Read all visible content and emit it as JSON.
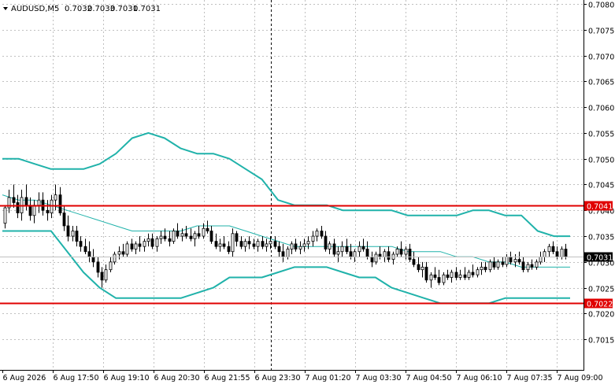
{
  "chart_data": {
    "type": "candlestick",
    "symbol_header": "AUDUSD,M5",
    "ohlc_header": [
      "0.7032",
      "0.7033",
      "0.7031",
      "0.7031"
    ],
    "y_range": [
      0.701,
      0.708
    ],
    "y_ticks": [
      "0.7080",
      "0.7075",
      "0.7070",
      "0.7065",
      "0.7060",
      "0.7055",
      "0.7050",
      "0.7045",
      "0.7040",
      "0.7035",
      "0.7030",
      "0.7025",
      "0.7020",
      "0.7015"
    ],
    "x_ticks": [
      "6 Aug 2026",
      "6 Aug 17:50",
      "6 Aug 19:10",
      "6 Aug 20:30",
      "6 Aug 21:55",
      "6 Aug 23:30",
      "7 Aug 01:20",
      "7 Aug 03:30",
      "7 Aug 04:50",
      "7 Aug 06:10",
      "7 Aug 07:35",
      "7 Aug 09:00"
    ],
    "grid": true,
    "crosshair_at": "6 Aug 23:30",
    "levels": [
      {
        "label": "0.7041",
        "value": 0.7041,
        "color": "#e00000"
      },
      {
        "label": "0.7022",
        "value": 0.7022,
        "color": "#e00000"
      }
    ],
    "last_price_label": "0.7031",
    "last_price": 0.7031,
    "bollinger_color": "#20b2aa",
    "bollinger_upper": [
      0.705,
      0.705,
      0.7049,
      0.7048,
      0.7048,
      0.7048,
      0.7049,
      0.7051,
      0.7054,
      0.7055,
      0.7054,
      0.7052,
      0.7051,
      0.7051,
      0.705,
      0.7048,
      0.7046,
      0.7042,
      0.7041,
      0.7041,
      0.7041,
      0.704,
      0.704,
      0.704,
      0.704,
      0.7039,
      0.7039,
      0.7039,
      0.7039,
      0.704,
      0.704,
      0.7039,
      0.7039,
      0.7036,
      0.7035,
      0.7035
    ],
    "bollinger_middle": [
      0.7043,
      0.7042,
      0.7042,
      0.7041,
      0.704,
      0.7039,
      0.7038,
      0.7037,
      0.7036,
      0.7036,
      0.7036,
      0.7036,
      0.7037,
      0.7037,
      0.7037,
      0.7036,
      0.7035,
      0.7034,
      0.7033,
      0.7033,
      0.7033,
      0.7033,
      0.7033,
      0.7033,
      0.7033,
      0.7032,
      0.7032,
      0.7032,
      0.7031,
      0.7031,
      0.703,
      0.703,
      0.7029,
      0.7029,
      0.7029,
      0.7029
    ],
    "bollinger_lower": [
      0.7036,
      0.7036,
      0.7036,
      0.7036,
      0.7032,
      0.7028,
      0.7025,
      0.7023,
      0.7023,
      0.7023,
      0.7023,
      0.7023,
      0.7024,
      0.7025,
      0.7027,
      0.7027,
      0.7027,
      0.7028,
      0.7029,
      0.7029,
      0.7029,
      0.7028,
      0.7027,
      0.7027,
      0.7025,
      0.7024,
      0.7023,
      0.7022,
      0.7022,
      0.7022,
      0.7022,
      0.7023,
      0.7023,
      0.7023,
      0.7023,
      0.7023
    ],
    "candles": [
      [
        0.70375,
        0.7041,
        0.70365,
        0.70405
      ],
      [
        0.70405,
        0.7044,
        0.70395,
        0.70425
      ],
      [
        0.70425,
        0.7045,
        0.70405,
        0.70415
      ],
      [
        0.70415,
        0.7043,
        0.70385,
        0.70395
      ],
      [
        0.70395,
        0.7044,
        0.7038,
        0.70425
      ],
      [
        0.70425,
        0.7045,
        0.704,
        0.7041
      ],
      [
        0.7041,
        0.70425,
        0.7038,
        0.7039
      ],
      [
        0.7039,
        0.7042,
        0.70375,
        0.7041
      ],
      [
        0.7041,
        0.70435,
        0.70395,
        0.7042
      ],
      [
        0.7042,
        0.70435,
        0.7039,
        0.704
      ],
      [
        0.704,
        0.7042,
        0.7038,
        0.70395
      ],
      [
        0.70395,
        0.7043,
        0.70385,
        0.7042
      ],
      [
        0.7042,
        0.7045,
        0.704,
        0.7043
      ],
      [
        0.7043,
        0.70445,
        0.7039,
        0.70395
      ],
      [
        0.70395,
        0.7041,
        0.7036,
        0.7037
      ],
      [
        0.7037,
        0.7039,
        0.7034,
        0.7035
      ],
      [
        0.7035,
        0.7037,
        0.7034,
        0.7036
      ],
      [
        0.7036,
        0.7037,
        0.7033,
        0.7034
      ],
      [
        0.7034,
        0.7035,
        0.7032,
        0.7033
      ],
      [
        0.7033,
        0.70345,
        0.70315,
        0.7032
      ],
      [
        0.7032,
        0.7034,
        0.703,
        0.7031
      ],
      [
        0.7031,
        0.70325,
        0.7029,
        0.703
      ],
      [
        0.703,
        0.7031,
        0.7027,
        0.7028
      ],
      [
        0.7028,
        0.7029,
        0.7025,
        0.70265
      ],
      [
        0.70265,
        0.70295,
        0.7026,
        0.70285
      ],
      [
        0.70285,
        0.7031,
        0.7028,
        0.703
      ],
      [
        0.703,
        0.7032,
        0.70295,
        0.70315
      ],
      [
        0.70315,
        0.7033,
        0.70305,
        0.7032
      ],
      [
        0.7032,
        0.70335,
        0.7031,
        0.70315
      ],
      [
        0.70315,
        0.7034,
        0.7031,
        0.70335
      ],
      [
        0.70335,
        0.70345,
        0.7032,
        0.70325
      ],
      [
        0.70325,
        0.7034,
        0.70315,
        0.70335
      ],
      [
        0.70335,
        0.7035,
        0.7032,
        0.7033
      ],
      [
        0.7033,
        0.70345,
        0.7032,
        0.7034
      ],
      [
        0.7034,
        0.70355,
        0.7033,
        0.70345
      ],
      [
        0.70345,
        0.70355,
        0.70325,
        0.7033
      ],
      [
        0.7033,
        0.7035,
        0.7032,
        0.70345
      ],
      [
        0.70345,
        0.7036,
        0.70335,
        0.7035
      ],
      [
        0.7035,
        0.70365,
        0.7034,
        0.70345
      ],
      [
        0.70345,
        0.7036,
        0.7033,
        0.7034
      ],
      [
        0.7034,
        0.70365,
        0.70335,
        0.7036
      ],
      [
        0.7036,
        0.70375,
        0.70345,
        0.7035
      ],
      [
        0.7035,
        0.70365,
        0.7034,
        0.70355
      ],
      [
        0.70355,
        0.7037,
        0.70345,
        0.7035
      ],
      [
        0.7035,
        0.70365,
        0.7034,
        0.70345
      ],
      [
        0.70345,
        0.7036,
        0.7033,
        0.70355
      ],
      [
        0.70355,
        0.7037,
        0.70345,
        0.7035
      ],
      [
        0.7035,
        0.70375,
        0.70345,
        0.70365
      ],
      [
        0.70365,
        0.7038,
        0.70355,
        0.7036
      ],
      [
        0.7036,
        0.7037,
        0.70335,
        0.7034
      ],
      [
        0.7034,
        0.70355,
        0.70325,
        0.7033
      ],
      [
        0.7033,
        0.70345,
        0.7032,
        0.70335
      ],
      [
        0.70335,
        0.7035,
        0.70325,
        0.7033
      ],
      [
        0.7033,
        0.7034,
        0.70315,
        0.7032
      ],
      [
        0.7032,
        0.70365,
        0.7031,
        0.70355
      ],
      [
        0.70355,
        0.7036,
        0.7033,
        0.7034
      ],
      [
        0.7034,
        0.7035,
        0.70325,
        0.7033
      ],
      [
        0.7033,
        0.70345,
        0.7032,
        0.7034
      ],
      [
        0.7034,
        0.7035,
        0.70325,
        0.70335
      ],
      [
        0.70335,
        0.70345,
        0.70325,
        0.7033
      ],
      [
        0.7033,
        0.70345,
        0.7032,
        0.7034
      ],
      [
        0.7034,
        0.7035,
        0.70325,
        0.7033
      ],
      [
        0.7033,
        0.70345,
        0.7032,
        0.70335
      ],
      [
        0.70335,
        0.7035,
        0.70325,
        0.7034
      ],
      [
        0.7034,
        0.7035,
        0.70325,
        0.7033
      ],
      [
        0.7033,
        0.7034,
        0.7031,
        0.7032
      ],
      [
        0.7032,
        0.70335,
        0.703,
        0.7031
      ],
      [
        0.7031,
        0.7033,
        0.70305,
        0.70325
      ],
      [
        0.70325,
        0.7034,
        0.70315,
        0.70335
      ],
      [
        0.70335,
        0.70345,
        0.7032,
        0.70325
      ],
      [
        0.70325,
        0.7034,
        0.70315,
        0.7033
      ],
      [
        0.7033,
        0.70345,
        0.7032,
        0.70335
      ],
      [
        0.70335,
        0.7035,
        0.70325,
        0.7034
      ],
      [
        0.7034,
        0.7036,
        0.7033,
        0.7035
      ],
      [
        0.7035,
        0.70365,
        0.7034,
        0.7036
      ],
      [
        0.7036,
        0.7037,
        0.70345,
        0.7035
      ],
      [
        0.7035,
        0.7036,
        0.7032,
        0.70325
      ],
      [
        0.70325,
        0.7034,
        0.70315,
        0.70335
      ],
      [
        0.70335,
        0.70345,
        0.7031,
        0.70315
      ],
      [
        0.70315,
        0.7033,
        0.703,
        0.7032
      ],
      [
        0.7032,
        0.7034,
        0.7031,
        0.7033
      ],
      [
        0.7033,
        0.70345,
        0.70315,
        0.7032
      ],
      [
        0.7032,
        0.70335,
        0.70305,
        0.7031
      ],
      [
        0.7031,
        0.70325,
        0.703,
        0.7032
      ],
      [
        0.7032,
        0.7034,
        0.7031,
        0.7033
      ],
      [
        0.7033,
        0.70345,
        0.7032,
        0.70325
      ],
      [
        0.70325,
        0.7034,
        0.70305,
        0.7031
      ],
      [
        0.7031,
        0.7032,
        0.7029,
        0.703
      ],
      [
        0.703,
        0.7032,
        0.70295,
        0.70315
      ],
      [
        0.70315,
        0.7033,
        0.70305,
        0.7031
      ],
      [
        0.7031,
        0.70325,
        0.703,
        0.7032
      ],
      [
        0.7032,
        0.7033,
        0.703,
        0.70305
      ],
      [
        0.70305,
        0.7032,
        0.70295,
        0.70315
      ],
      [
        0.70315,
        0.7033,
        0.7031,
        0.70325
      ],
      [
        0.70325,
        0.7034,
        0.7031,
        0.70315
      ],
      [
        0.70315,
        0.7033,
        0.70305,
        0.70325
      ],
      [
        0.70325,
        0.70335,
        0.703,
        0.70305
      ],
      [
        0.70305,
        0.7032,
        0.7029,
        0.70295
      ],
      [
        0.70295,
        0.7031,
        0.7028,
        0.70285
      ],
      [
        0.70285,
        0.703,
        0.7027,
        0.7029
      ],
      [
        0.7029,
        0.703,
        0.7026,
        0.70265
      ],
      [
        0.70265,
        0.7028,
        0.7025,
        0.70275
      ],
      [
        0.70275,
        0.7029,
        0.70265,
        0.7027
      ],
      [
        0.7027,
        0.70285,
        0.70255,
        0.7026
      ],
      [
        0.7026,
        0.7028,
        0.70255,
        0.70275
      ],
      [
        0.70275,
        0.70285,
        0.70265,
        0.7027
      ],
      [
        0.7027,
        0.70285,
        0.7026,
        0.7028
      ],
      [
        0.7028,
        0.7029,
        0.70265,
        0.7027
      ],
      [
        0.7027,
        0.70285,
        0.70265,
        0.70275
      ],
      [
        0.70275,
        0.7029,
        0.70265,
        0.7027
      ],
      [
        0.7027,
        0.70285,
        0.70265,
        0.7028
      ],
      [
        0.7028,
        0.70295,
        0.7027,
        0.70275
      ],
      [
        0.70275,
        0.7029,
        0.7027,
        0.70285
      ],
      [
        0.70285,
        0.703,
        0.70275,
        0.7029
      ],
      [
        0.7029,
        0.703,
        0.7028,
        0.70285
      ],
      [
        0.70285,
        0.70305,
        0.7028,
        0.703
      ],
      [
        0.703,
        0.7031,
        0.70285,
        0.7029
      ],
      [
        0.7029,
        0.70305,
        0.70285,
        0.703
      ],
      [
        0.703,
        0.7031,
        0.7029,
        0.70295
      ],
      [
        0.70295,
        0.70315,
        0.7029,
        0.7031
      ],
      [
        0.7031,
        0.7032,
        0.70295,
        0.703
      ],
      [
        0.703,
        0.70315,
        0.7029,
        0.70305
      ],
      [
        0.70305,
        0.7032,
        0.70295,
        0.703
      ],
      [
        0.703,
        0.7031,
        0.7028,
        0.70285
      ],
      [
        0.70285,
        0.703,
        0.7028,
        0.70295
      ],
      [
        0.70295,
        0.70305,
        0.70285,
        0.7029
      ],
      [
        0.7029,
        0.70305,
        0.70285,
        0.703
      ],
      [
        0.703,
        0.7032,
        0.70295,
        0.7031
      ],
      [
        0.7031,
        0.70325,
        0.703,
        0.7032
      ],
      [
        0.7032,
        0.70335,
        0.7031,
        0.7033
      ],
      [
        0.7033,
        0.7034,
        0.70315,
        0.7032
      ],
      [
        0.7032,
        0.7033,
        0.70305,
        0.7031
      ],
      [
        0.7031,
        0.7033,
        0.70305,
        0.70325
      ],
      [
        0.70325,
        0.70335,
        0.70305,
        0.7031
      ]
    ]
  }
}
